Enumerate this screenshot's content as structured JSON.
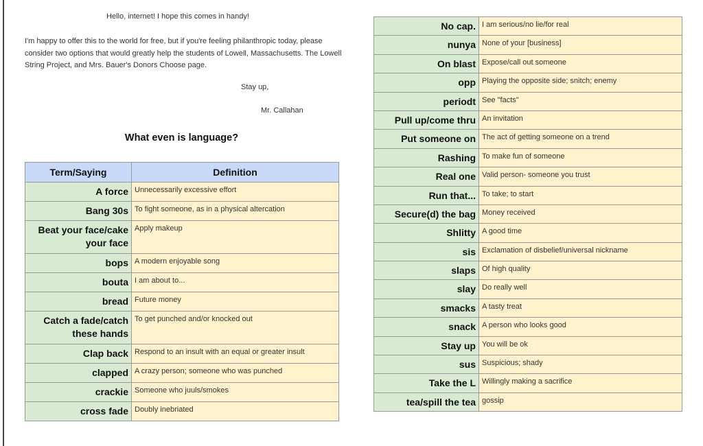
{
  "letter": {
    "greeting": "Hello, internet! I hope this comes in handy!",
    "body": "I'm happy to offer this to the world for free, but if you're feeling philanthropic today, please consider two options that would greatly help the students of Lowell, Massachusetts. The Lowell String Project, and Mrs. Bauer's Donors Choose page.",
    "closing": "Stay up,",
    "signature": "Mr. Callahan"
  },
  "title": "What even is language?",
  "table_headers": [
    "Term/Saying",
    "Definition"
  ],
  "left_rows": [
    {
      "term": "A force",
      "def": "Unnecessarily excessive effort"
    },
    {
      "term": "Bang 30s",
      "def": "To fight someone, as in a physical altercation"
    },
    {
      "term": "Beat your face/cake your face",
      "def": "Apply makeup"
    },
    {
      "term": "bops",
      "def": "A modern enjoyable song"
    },
    {
      "term": "bouta",
      "def": "I am about to..."
    },
    {
      "term": "bread",
      "def": "Future money"
    },
    {
      "term": "Catch a fade/catch these hands",
      "def": "To get punched and/or knocked out"
    },
    {
      "term": "Clap back",
      "def": "Respond to an insult with an equal or greater insult"
    },
    {
      "term": "clapped",
      "def": "A crazy person; someone who was punched"
    },
    {
      "term": "crackie",
      "def": "Someone who juuls/smokes"
    },
    {
      "term": "cross fade",
      "def": "Doubly inebriated"
    }
  ],
  "right_rows": [
    {
      "term": "No cap.",
      "def": "I am serious/no lie/for real"
    },
    {
      "term": "nunya",
      "def": "None of your [business]"
    },
    {
      "term": "On blast",
      "def": "Expose/call out someone"
    },
    {
      "term": "opp",
      "def": "Playing the opposite side; snitch; enemy"
    },
    {
      "term": "periodt",
      "def": "See \"facts\""
    },
    {
      "term": "Pull up/come thru",
      "def": "An invitation"
    },
    {
      "term": "Put someone on",
      "def": "The act of getting someone on a trend"
    },
    {
      "term": "Rashing",
      "def": "To make fun of someone"
    },
    {
      "term": "Real one",
      "def": "Valid person- someone you trust"
    },
    {
      "term": "Run that...",
      "def": "To take; to start"
    },
    {
      "term": "Secure(d) the bag",
      "def": "Money received"
    },
    {
      "term": "Shlitty",
      "def": "A good time"
    },
    {
      "term": "sis",
      "def": "Exclamation of disbelief/universal nickname"
    },
    {
      "term": "slaps",
      "def": "Of high quality"
    },
    {
      "term": "slay",
      "def": "Do really well"
    },
    {
      "term": "smacks",
      "def": "A tasty treat"
    },
    {
      "term": "snack",
      "def": "A person who looks good"
    },
    {
      "term": "Stay up",
      "def": "You will be ok"
    },
    {
      "term": "sus",
      "def": "Suspicious; shady"
    },
    {
      "term": "Take the L",
      "def": " Willingly making a sacrifice"
    },
    {
      "term": "tea/spill the tea",
      "def": "gossip"
    }
  ],
  "colors": {
    "term_bg": "#d9ead3",
    "def_bg": "#fff2cc",
    "header_bg": "#c9daf8"
  }
}
